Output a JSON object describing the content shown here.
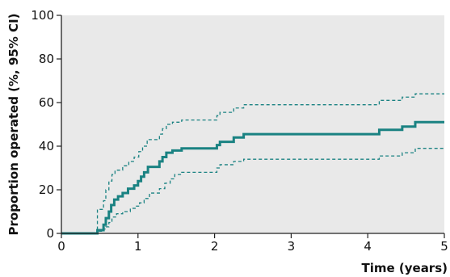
{
  "chart_data": {
    "type": "line",
    "title": "",
    "xlabel": "Time (years)",
    "ylabel": "Proportion operated (%, 95% CI)",
    "xlim": [
      0,
      5
    ],
    "ylim": [
      0,
      100
    ],
    "x_ticks": [
      "0",
      "1",
      "2",
      "3",
      "4",
      "5"
    ],
    "y_ticks": [
      "0",
      "20",
      "40",
      "60",
      "80",
      "100"
    ],
    "grid": "off",
    "legend": "none",
    "colors": {
      "plot_background": "#e9e9e9",
      "line": "#1a8282",
      "axis": "#222222"
    },
    "series": [
      {
        "role": "estimate",
        "style": "solid",
        "points": [
          [
            0,
            0
          ],
          [
            0.47,
            0
          ],
          [
            0.47,
            1.5
          ],
          [
            0.55,
            1.5
          ],
          [
            0.55,
            4
          ],
          [
            0.58,
            4
          ],
          [
            0.58,
            7
          ],
          [
            0.62,
            7
          ],
          [
            0.62,
            10
          ],
          [
            0.65,
            10
          ],
          [
            0.65,
            13
          ],
          [
            0.69,
            13
          ],
          [
            0.69,
            15.5
          ],
          [
            0.74,
            15.5
          ],
          [
            0.74,
            17
          ],
          [
            0.8,
            17
          ],
          [
            0.8,
            18.5
          ],
          [
            0.87,
            18.5
          ],
          [
            0.87,
            20.5
          ],
          [
            0.95,
            20.5
          ],
          [
            0.95,
            22
          ],
          [
            1.0,
            22
          ],
          [
            1.0,
            24
          ],
          [
            1.04,
            24
          ],
          [
            1.04,
            26
          ],
          [
            1.08,
            26
          ],
          [
            1.08,
            28
          ],
          [
            1.13,
            28
          ],
          [
            1.13,
            30.5
          ],
          [
            1.28,
            30.5
          ],
          [
            1.28,
            33
          ],
          [
            1.32,
            33
          ],
          [
            1.32,
            35
          ],
          [
            1.37,
            35
          ],
          [
            1.37,
            37
          ],
          [
            1.45,
            37
          ],
          [
            1.45,
            38
          ],
          [
            1.57,
            38
          ],
          [
            1.57,
            39
          ],
          [
            2.03,
            39
          ],
          [
            2.03,
            40.5
          ],
          [
            2.07,
            40.5
          ],
          [
            2.07,
            42
          ],
          [
            2.25,
            42
          ],
          [
            2.25,
            44
          ],
          [
            2.38,
            44
          ],
          [
            2.38,
            45.5
          ],
          [
            4.15,
            45.5
          ],
          [
            4.15,
            47.5
          ],
          [
            4.45,
            47.5
          ],
          [
            4.45,
            49
          ],
          [
            4.62,
            49
          ],
          [
            4.62,
            51
          ],
          [
            5.0,
            51
          ]
        ]
      },
      {
        "role": "upper 95% CI",
        "style": "dashed",
        "points": [
          [
            0,
            0
          ],
          [
            0.47,
            0
          ],
          [
            0.47,
            11
          ],
          [
            0.55,
            11
          ],
          [
            0.55,
            15
          ],
          [
            0.58,
            15
          ],
          [
            0.58,
            20
          ],
          [
            0.62,
            20
          ],
          [
            0.62,
            24
          ],
          [
            0.66,
            24
          ],
          [
            0.66,
            27
          ],
          [
            0.7,
            27
          ],
          [
            0.7,
            29
          ],
          [
            0.8,
            29
          ],
          [
            0.8,
            31
          ],
          [
            0.88,
            31
          ],
          [
            0.88,
            33
          ],
          [
            0.95,
            33
          ],
          [
            0.95,
            35
          ],
          [
            1.01,
            35
          ],
          [
            1.01,
            37.5
          ],
          [
            1.06,
            37.5
          ],
          [
            1.06,
            40
          ],
          [
            1.12,
            40
          ],
          [
            1.12,
            43
          ],
          [
            1.28,
            43
          ],
          [
            1.28,
            45.5
          ],
          [
            1.32,
            45.5
          ],
          [
            1.32,
            48
          ],
          [
            1.37,
            48
          ],
          [
            1.37,
            50
          ],
          [
            1.45,
            50
          ],
          [
            1.45,
            51
          ],
          [
            1.57,
            51
          ],
          [
            1.57,
            52
          ],
          [
            2.03,
            52
          ],
          [
            2.03,
            54
          ],
          [
            2.07,
            54
          ],
          [
            2.07,
            55.5
          ],
          [
            2.25,
            55.5
          ],
          [
            2.25,
            57.5
          ],
          [
            2.38,
            57.5
          ],
          [
            2.38,
            59
          ],
          [
            4.15,
            59
          ],
          [
            4.15,
            61
          ],
          [
            4.45,
            61
          ],
          [
            4.45,
            62.5
          ],
          [
            4.62,
            62.5
          ],
          [
            4.62,
            64
          ],
          [
            5.0,
            64
          ]
        ]
      },
      {
        "role": "lower 95% CI",
        "style": "dashed",
        "points": [
          [
            0,
            0
          ],
          [
            0.47,
            0
          ],
          [
            0.47,
            1
          ],
          [
            0.55,
            1
          ],
          [
            0.55,
            2
          ],
          [
            0.58,
            2
          ],
          [
            0.58,
            3
          ],
          [
            0.62,
            3
          ],
          [
            0.62,
            5
          ],
          [
            0.66,
            5
          ],
          [
            0.66,
            7.5
          ],
          [
            0.72,
            7.5
          ],
          [
            0.72,
            9
          ],
          [
            0.8,
            9
          ],
          [
            0.8,
            10
          ],
          [
            0.9,
            10
          ],
          [
            0.9,
            11.5
          ],
          [
            0.97,
            11.5
          ],
          [
            0.97,
            12.5
          ],
          [
            1.02,
            12.5
          ],
          [
            1.02,
            14
          ],
          [
            1.08,
            14
          ],
          [
            1.08,
            16
          ],
          [
            1.15,
            16
          ],
          [
            1.15,
            18.5
          ],
          [
            1.28,
            18.5
          ],
          [
            1.28,
            20.5
          ],
          [
            1.35,
            20.5
          ],
          [
            1.35,
            23
          ],
          [
            1.42,
            23
          ],
          [
            1.42,
            25
          ],
          [
            1.48,
            25
          ],
          [
            1.48,
            27
          ],
          [
            1.57,
            27
          ],
          [
            1.57,
            28
          ],
          [
            2.03,
            28
          ],
          [
            2.03,
            30
          ],
          [
            2.07,
            30
          ],
          [
            2.07,
            31.5
          ],
          [
            2.25,
            31.5
          ],
          [
            2.25,
            33
          ],
          [
            2.38,
            33
          ],
          [
            2.38,
            34
          ],
          [
            4.15,
            34
          ],
          [
            4.15,
            35.5
          ],
          [
            4.45,
            35.5
          ],
          [
            4.45,
            37
          ],
          [
            4.62,
            37
          ],
          [
            4.62,
            39
          ],
          [
            5.0,
            39
          ]
        ]
      }
    ]
  }
}
